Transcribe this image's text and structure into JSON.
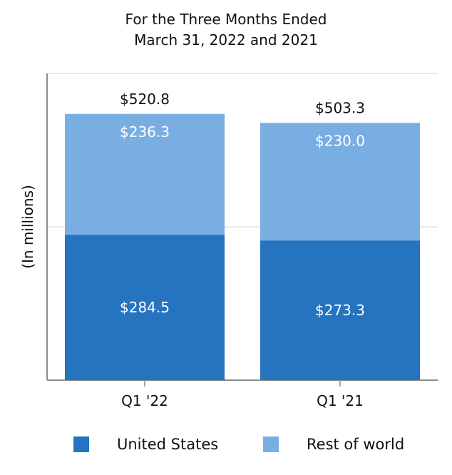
{
  "chart_data": {
    "type": "bar",
    "stacked": true,
    "title": [
      "For the Three Months Ended",
      "March 31, 2022 and 2021"
    ],
    "ylabel": "(In millions)",
    "xlabel": "",
    "categories": [
      "Q1 '22",
      "Q1 '21"
    ],
    "series": [
      {
        "name": "United States",
        "values": [
          284.5,
          273.3
        ],
        "labels": [
          "$284.5",
          "$273.3"
        ],
        "color": "#2673bf"
      },
      {
        "name": "Rest of world",
        "values": [
          236.3,
          230.0
        ],
        "labels": [
          "$236.3",
          "$230.0"
        ],
        "color": "#79aee3"
      }
    ],
    "totals": [
      520.8,
      503.3
    ],
    "total_labels": [
      "$520.8",
      "$503.3"
    ],
    "ylim": [
      0,
      600
    ],
    "grid": true,
    "legend_position": "bottom"
  }
}
